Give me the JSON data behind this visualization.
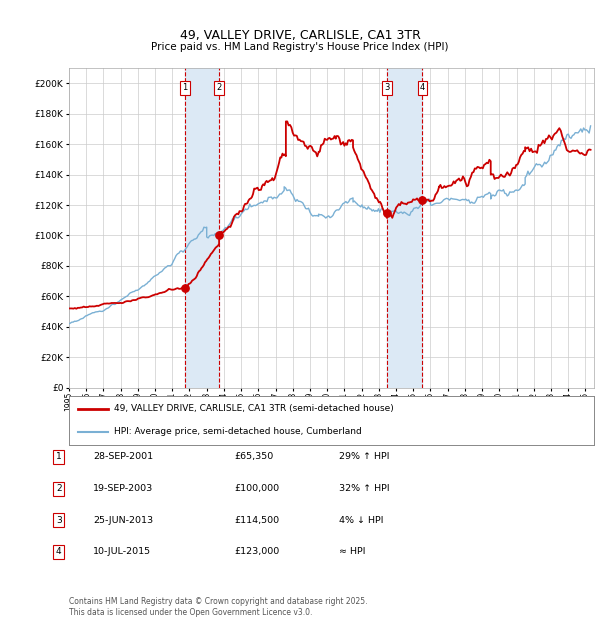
{
  "title": "49, VALLEY DRIVE, CARLISLE, CA1 3TR",
  "subtitle": "Price paid vs. HM Land Registry's House Price Index (HPI)",
  "title_fontsize": 9,
  "subtitle_fontsize": 7.5,
  "background_color": "#ffffff",
  "plot_bg_color": "#ffffff",
  "grid_color": "#cccccc",
  "red_line_color": "#cc0000",
  "blue_line_color": "#7ab0d4",
  "shading_color": "#dce9f5",
  "vline_color": "#cc0000",
  "ylim": [
    0,
    210000
  ],
  "yticks": [
    0,
    20000,
    40000,
    60000,
    80000,
    100000,
    120000,
    140000,
    160000,
    180000,
    200000
  ],
  "ytick_labels": [
    "£0",
    "£20K",
    "£40K",
    "£60K",
    "£80K",
    "£100K",
    "£120K",
    "£140K",
    "£160K",
    "£180K",
    "£200K"
  ],
  "xlim_start": 1995.0,
  "xlim_end": 2025.5,
  "xtick_years": [
    1995,
    1996,
    1997,
    1998,
    1999,
    2000,
    2001,
    2002,
    2003,
    2004,
    2005,
    2006,
    2007,
    2008,
    2009,
    2010,
    2011,
    2012,
    2013,
    2014,
    2015,
    2016,
    2017,
    2018,
    2019,
    2020,
    2021,
    2022,
    2023,
    2024,
    2025
  ],
  "transactions": [
    {
      "num": 1,
      "price": 65350,
      "year": 2001.74,
      "x_shade_start": 2001.74,
      "x_shade_end": 2003.72
    },
    {
      "num": 2,
      "price": 100000,
      "year": 2003.72,
      "x_shade_start": 2001.74,
      "x_shade_end": 2003.72
    },
    {
      "num": 3,
      "price": 114500,
      "year": 2013.48,
      "x_shade_start": 2013.48,
      "x_shade_end": 2015.52
    },
    {
      "num": 4,
      "price": 123000,
      "year": 2015.52,
      "x_shade_start": 2013.48,
      "x_shade_end": 2015.52
    }
  ],
  "legend_entries": [
    {
      "label": "49, VALLEY DRIVE, CARLISLE, CA1 3TR (semi-detached house)",
      "color": "#cc0000",
      "lw": 2
    },
    {
      "label": "HPI: Average price, semi-detached house, Cumberland",
      "color": "#7ab0d4",
      "lw": 1.5
    }
  ],
  "table_rows": [
    {
      "num": 1,
      "date": "28-SEP-2001",
      "price": "£65,350",
      "rel": "29% ↑ HPI"
    },
    {
      "num": 2,
      "date": "19-SEP-2003",
      "price": "£100,000",
      "rel": "32% ↑ HPI"
    },
    {
      "num": 3,
      "date": "25-JUN-2013",
      "price": "£114,500",
      "rel": "4% ↓ HPI"
    },
    {
      "num": 4,
      "date": "10-JUL-2015",
      "price": "£123,000",
      "rel": "≈ HPI"
    }
  ],
  "footer": "Contains HM Land Registry data © Crown copyright and database right 2025.\nThis data is licensed under the Open Government Licence v3.0.",
  "footer_fontsize": 5.5
}
